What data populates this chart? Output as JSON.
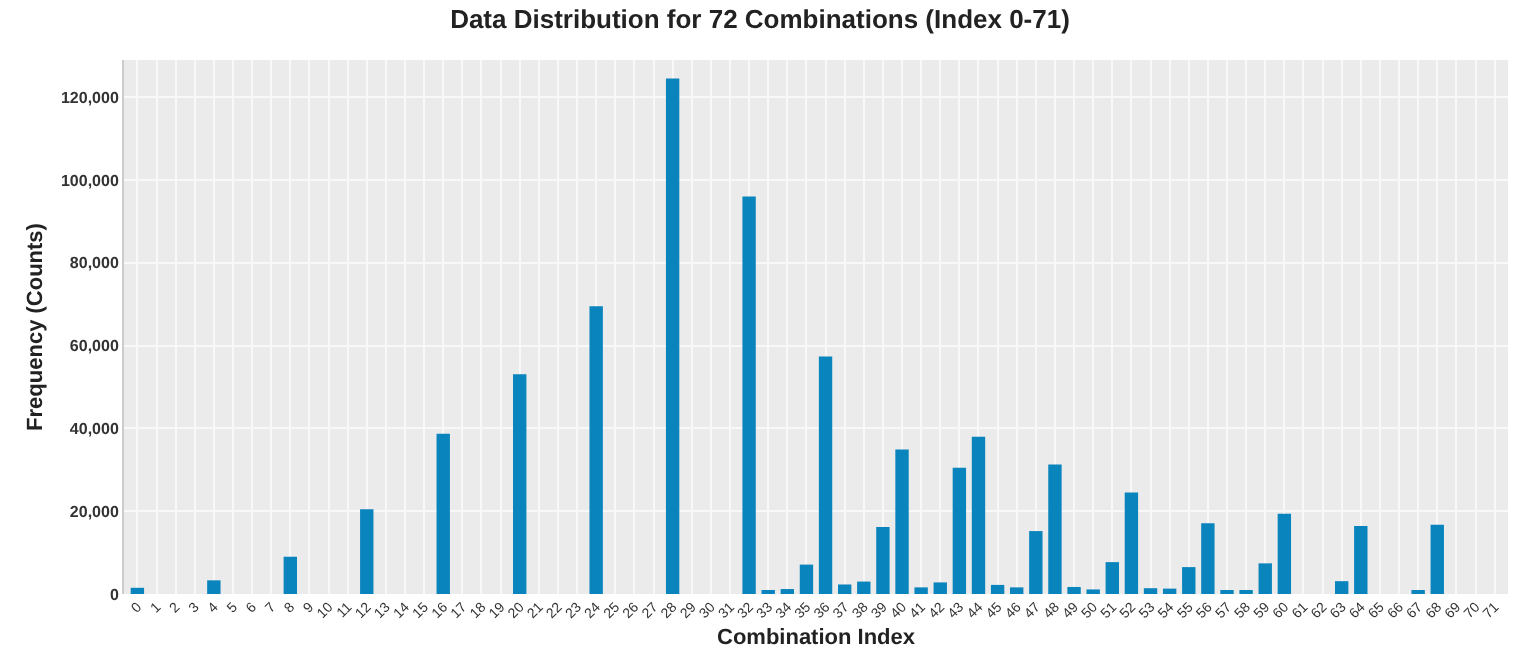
{
  "chart_data": {
    "type": "bar",
    "title": "Data Distribution for 72 Combinations (Index 0-71)",
    "xlabel": "Combination Index",
    "ylabel": "Frequency (Counts)",
    "categories": [
      "0",
      "1",
      "2",
      "3",
      "4",
      "5",
      "6",
      "7",
      "8",
      "9",
      "10",
      "11",
      "12",
      "13",
      "14",
      "15",
      "16",
      "17",
      "18",
      "19",
      "20",
      "21",
      "22",
      "23",
      "24",
      "25",
      "26",
      "27",
      "28",
      "29",
      "30",
      "31",
      "32",
      "33",
      "34",
      "35",
      "36",
      "37",
      "38",
      "39",
      "40",
      "41",
      "42",
      "43",
      "44",
      "45",
      "46",
      "47",
      "48",
      "49",
      "50",
      "51",
      "52",
      "53",
      "54",
      "55",
      "56",
      "57",
      "58",
      "59",
      "60",
      "61",
      "62",
      "63",
      "64",
      "65",
      "66",
      "67",
      "68",
      "69",
      "70",
      "71"
    ],
    "values": [
      1500,
      0,
      0,
      0,
      3300,
      0,
      0,
      0,
      9000,
      0,
      0,
      0,
      20500,
      0,
      0,
      0,
      38700,
      0,
      0,
      0,
      53100,
      0,
      0,
      0,
      69500,
      0,
      0,
      0,
      124500,
      null,
      null,
      0,
      96000,
      600,
      1200,
      7100,
      57400,
      2300,
      3000,
      16200,
      34900,
      1600,
      2800,
      30500,
      38000,
      2200,
      1600,
      15200,
      31300,
      1700,
      1100,
      7700,
      24500,
      1400,
      1300,
      6500,
      17100,
      700,
      700,
      7400,
      19400,
      null,
      null,
      3100,
      16400,
      null,
      null,
      500,
      16700,
      null,
      0,
      0
    ],
    "colors": [
      "#0a84bc",
      "#0a84bc",
      "#0a84bc",
      "#0a84bc",
      "#0a84bc",
      "#0a84bc",
      "#0a84bc",
      "#0a84bc",
      "#0a84bc",
      "#0a84bc",
      "#0a84bc",
      "#0a84bc",
      "#0a84bc",
      "#0a84bc",
      "#0a84bc",
      "#0a84bc",
      "#0a84bc",
      "#0a84bc",
      "#0a84bc",
      "#0a84bc",
      "#0a84bc",
      "#0a84bc",
      "#0a84bc",
      "#0a84bc",
      "#0a84bc",
      "#0a84bc",
      "#0a84bc",
      "#0a84bc",
      "#0a84bc",
      "#a9cfe0",
      "#a9cfe0",
      "#0a84bc",
      "#0a84bc",
      "#0a84bc",
      "#0a84bc",
      "#0a84bc",
      "#0a84bc",
      "#0a84bc",
      "#0a84bc",
      "#0a84bc",
      "#0a84bc",
      "#0a84bc",
      "#0a84bc",
      "#0a84bc",
      "#0a84bc",
      "#0a84bc",
      "#0a84bc",
      "#0a84bc",
      "#0a84bc",
      "#0a84bc",
      "#0a84bc",
      "#0a84bc",
      "#0a84bc",
      "#0a84bc",
      "#0a84bc",
      "#0a84bc",
      "#0a84bc",
      "#0a84bc",
      "#0a84bc",
      "#0a84bc",
      "#0a84bc",
      "#a9cfe0",
      "#a9cfe0",
      "#0a84bc",
      "#0a84bc",
      "#a9cfe0",
      "#a9cfe0",
      "#0a84bc",
      "#0a84bc",
      "#a9cfe0",
      "#0a84bc",
      "#0a84bc"
    ],
    "ylim": [
      0,
      129000
    ],
    "yticks": [
      0,
      {
        "value": 20000,
        "label": "20,000"
      },
      {
        "value": 40000,
        "label": "40,000"
      },
      {
        "value": 60000,
        "label": "60,000"
      },
      {
        "value": 80000,
        "label": "80,000"
      },
      {
        "value": 100000,
        "label": "100,000"
      },
      {
        "value": 120000,
        "label": "120,000"
      }
    ],
    "grid": true
  }
}
